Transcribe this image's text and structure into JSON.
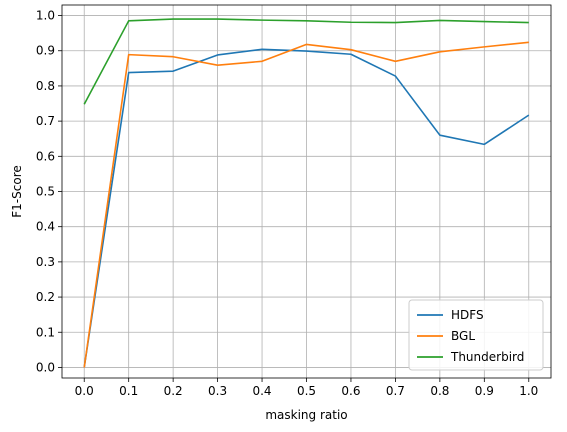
{
  "chart_data": {
    "type": "line",
    "title": "",
    "xlabel": "masking ratio",
    "ylabel": "F1-Score",
    "x": [
      0.0,
      0.1,
      0.2,
      0.3,
      0.4,
      0.5,
      0.6,
      0.7,
      0.8,
      0.9,
      1.0
    ],
    "xlim": [
      -0.05,
      1.05
    ],
    "ylim": [
      -0.03,
      1.03
    ],
    "xticks": [
      "0.0",
      "0.1",
      "0.2",
      "0.3",
      "0.4",
      "0.5",
      "0.6",
      "0.7",
      "0.8",
      "0.9",
      "1.0"
    ],
    "yticks": [
      "0.0",
      "0.1",
      "0.2",
      "0.3",
      "0.4",
      "0.5",
      "0.6",
      "0.7",
      "0.8",
      "0.9",
      "1.0"
    ],
    "grid": true,
    "legend_position": "bottom-right",
    "series": [
      {
        "name": "HDFS",
        "color": "#1f77b4",
        "values": [
          0.0,
          0.838,
          0.842,
          0.888,
          0.904,
          0.899,
          0.89,
          0.828,
          0.66,
          0.634,
          0.717
        ]
      },
      {
        "name": "BGL",
        "color": "#ff7f0e",
        "values": [
          0.0,
          0.889,
          0.883,
          0.859,
          0.87,
          0.918,
          0.903,
          0.87,
          0.897,
          0.911,
          0.924
        ]
      },
      {
        "name": "Thunderbird",
        "color": "#2ca02c",
        "values": [
          0.748,
          0.985,
          0.99,
          0.99,
          0.987,
          0.985,
          0.981,
          0.98,
          0.986,
          0.983,
          0.98
        ]
      }
    ]
  }
}
